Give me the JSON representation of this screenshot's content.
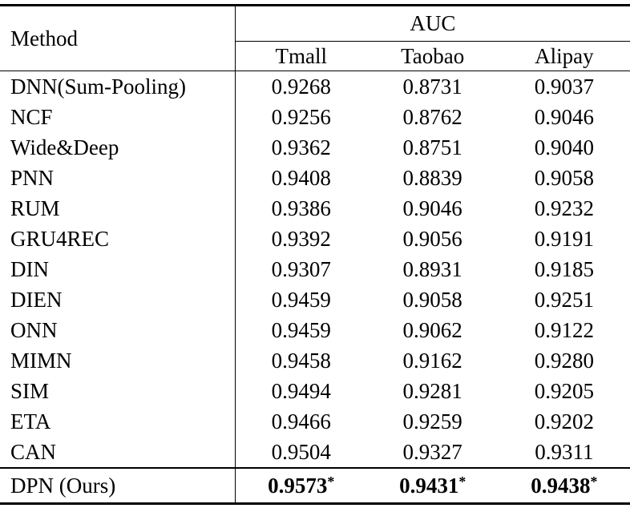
{
  "table": {
    "header": {
      "method_label": "Method",
      "group_label": "AUC",
      "columns": [
        "Tmall",
        "Taobao",
        "Alipay"
      ]
    },
    "rows": [
      {
        "method": "DNN(Sum-Pooling)",
        "values": [
          "0.9268",
          "0.8731",
          "0.9037"
        ]
      },
      {
        "method": "NCF",
        "values": [
          "0.9256",
          "0.8762",
          "0.9046"
        ]
      },
      {
        "method": "Wide&Deep",
        "values": [
          "0.9362",
          "0.8751",
          "0.9040"
        ]
      },
      {
        "method": "PNN",
        "values": [
          "0.9408",
          "0.8839",
          "0.9058"
        ]
      },
      {
        "method": "RUM",
        "values": [
          "0.9386",
          "0.9046",
          "0.9232"
        ]
      },
      {
        "method": "GRU4REC",
        "values": [
          "0.9392",
          "0.9056",
          "0.9191"
        ]
      },
      {
        "method": "DIN",
        "values": [
          "0.9307",
          "0.8931",
          "0.9185"
        ]
      },
      {
        "method": "DIEN",
        "values": [
          "0.9459",
          "0.9058",
          "0.9251"
        ]
      },
      {
        "method": "ONN",
        "values": [
          "0.9459",
          "0.9062",
          "0.9122"
        ]
      },
      {
        "method": "MIMN",
        "values": [
          "0.9458",
          "0.9162",
          "0.9280"
        ]
      },
      {
        "method": "SIM",
        "values": [
          "0.9494",
          "0.9281",
          "0.9205"
        ]
      },
      {
        "method": "ETA",
        "values": [
          "0.9466",
          "0.9259",
          "0.9202"
        ]
      },
      {
        "method": "CAN",
        "values": [
          "0.9504",
          "0.9327",
          "0.9311"
        ]
      }
    ],
    "highlight_row": {
      "method": "DPN (Ours)",
      "values": [
        "0.9573",
        "0.9431",
        "0.9438"
      ],
      "marker": "*"
    },
    "colors": {
      "text": "#000000",
      "background": "#ffffff",
      "rule": "#000000"
    }
  }
}
